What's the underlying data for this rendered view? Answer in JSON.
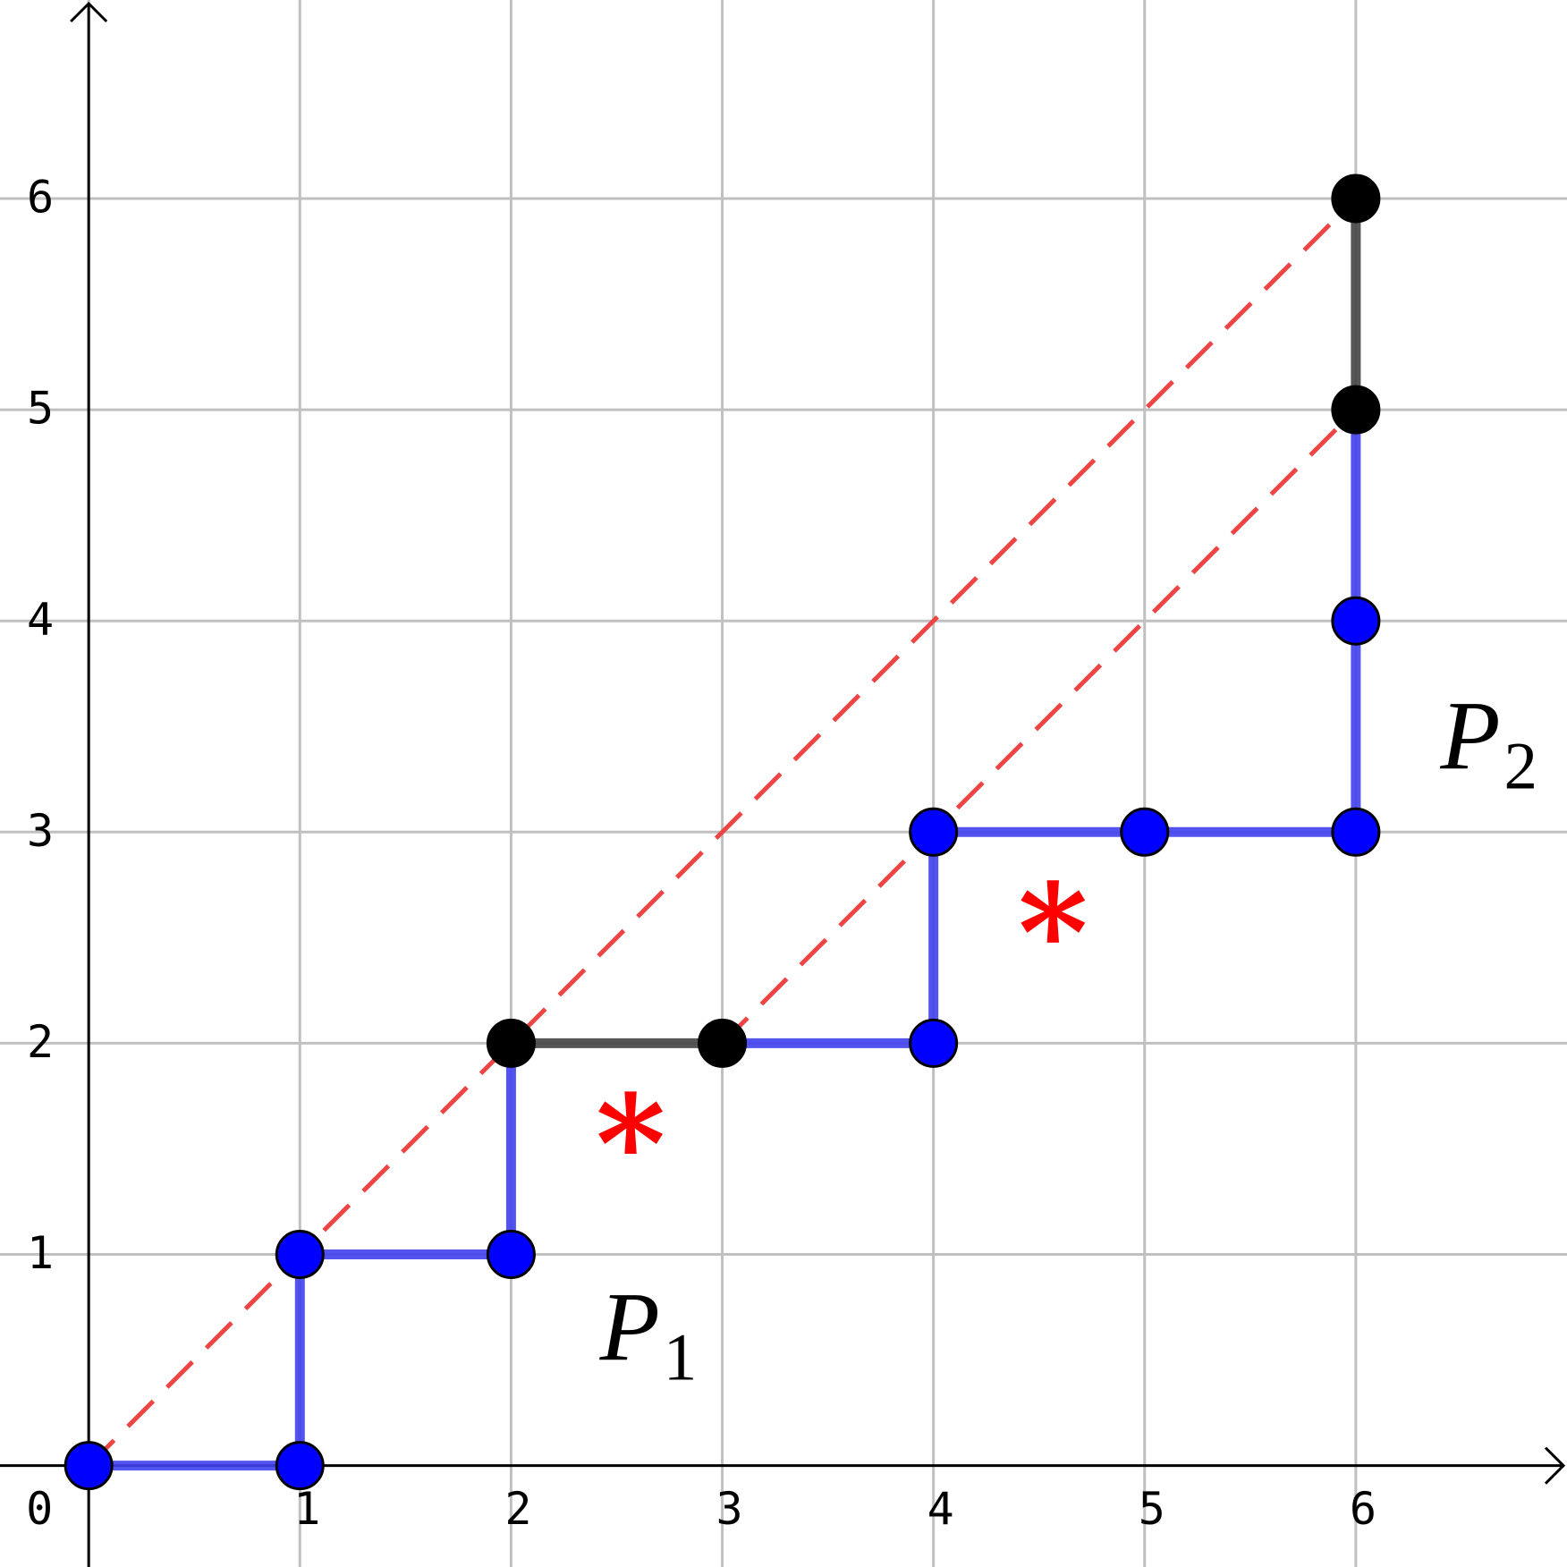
{
  "chart_data": {
    "type": "lattice-path",
    "xlim": [
      -0.42,
      7.0
    ],
    "ylim": [
      -0.48,
      6.94
    ],
    "xticks": [
      0,
      1,
      2,
      3,
      4,
      5,
      6
    ],
    "yticks": [
      1,
      2,
      3,
      4,
      5,
      6
    ],
    "grid": true,
    "series": [
      {
        "style": "dashed",
        "color": "#ee4444",
        "x": [
          0,
          6,
          null,
          3,
          6
        ],
        "values": [
          0,
          6,
          null,
          2,
          5
        ]
      },
      {
        "style": "line",
        "color": "#4040ee",
        "x": [
          0,
          1,
          1,
          2,
          2,
          null,
          3,
          4,
          4,
          5,
          6,
          6,
          6
        ],
        "values": [
          0,
          0,
          1,
          1,
          2,
          null,
          2,
          2,
          3,
          3,
          3,
          4,
          5
        ]
      },
      {
        "style": "line",
        "color": "#444444",
        "x": [
          2,
          3,
          null,
          6,
          6
        ],
        "values": [
          2,
          2,
          null,
          5,
          6
        ]
      },
      {
        "style": "points",
        "color": "#0000ff",
        "x": [
          0,
          1,
          1,
          2,
          4,
          4,
          5,
          6,
          6
        ],
        "values": [
          0,
          0,
          1,
          1,
          2,
          3,
          3,
          3,
          4
        ]
      },
      {
        "style": "points",
        "color": "#000000",
        "x": [
          2,
          3,
          6,
          6
        ],
        "values": [
          2,
          2,
          5,
          6
        ]
      }
    ],
    "annotations": [
      {
        "text": "P",
        "sub": "1",
        "x": 2.42,
        "y": 0.5
      },
      {
        "text": "P",
        "sub": "2",
        "x": 6.4,
        "y": 3.3
      },
      {
        "text": "*",
        "x": 2.4,
        "y": 1.3,
        "color": "#ff0000"
      },
      {
        "text": "*",
        "x": 4.4,
        "y": 2.3,
        "color": "#ff0000"
      }
    ]
  }
}
